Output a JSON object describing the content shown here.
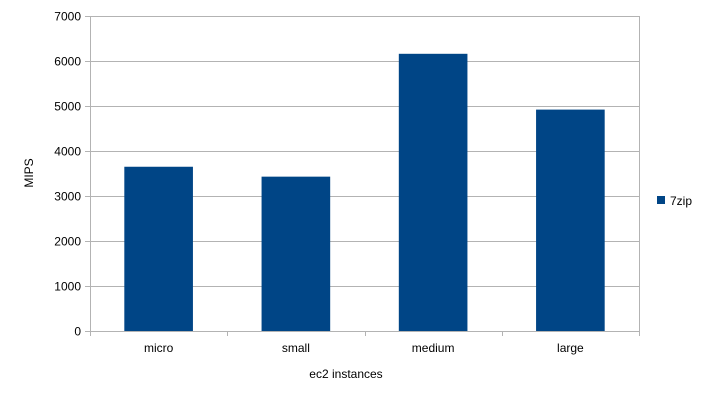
{
  "chart_data": {
    "type": "bar",
    "title": "",
    "xlabel": "ec2 instances",
    "ylabel": "MIPS",
    "categories": [
      "micro",
      "small",
      "medium",
      "large"
    ],
    "series": [
      {
        "name": "7zip",
        "values": [
          3650,
          3430,
          6160,
          4920
        ]
      }
    ],
    "ylim": [
      0,
      7000
    ],
    "yticks": [
      0,
      1000,
      2000,
      3000,
      4000,
      5000,
      6000,
      7000
    ],
    "ytick_labels": [
      "0",
      "1000",
      "2000",
      "3000",
      "4000",
      "5000",
      "6000",
      "7000"
    ],
    "grid": true,
    "legend": "right"
  },
  "colors": {
    "series": "#004586",
    "grid": "#b3b3b3",
    "axis": "#b3b3b3",
    "text": "#000000"
  }
}
